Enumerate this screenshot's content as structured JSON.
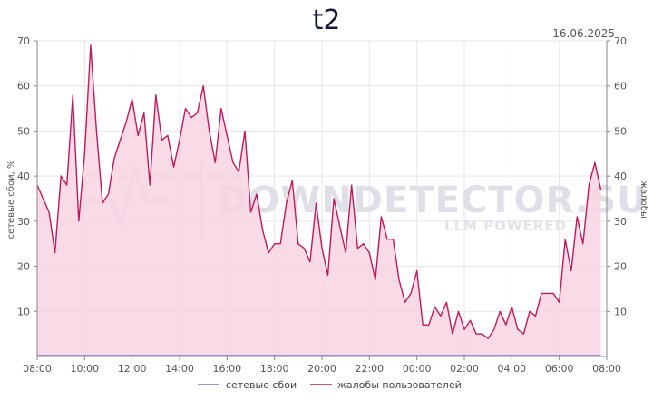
{
  "watermark": {
    "brand": "DOWNDETECTOR.SU",
    "tagline": "LLM POWERED"
  },
  "colors": {
    "complaints_line": "#c2185b",
    "complaints_fill": "#f8d3e3",
    "network_line": "#7b6fd0",
    "grid": "#e6e6e6",
    "axis": "#888888"
  },
  "chart_data": {
    "type": "area",
    "title": "t2",
    "date": "16.06.2025",
    "ylabel_left": "сетевые сбои, %",
    "ylabel_right": "жалобы",
    "ylim": [
      0,
      70
    ],
    "yticks": [
      10,
      20,
      30,
      40,
      50,
      60,
      70
    ],
    "xlim": [
      8,
      32
    ],
    "xticks": [
      {
        "x": 8,
        "label": "08:00"
      },
      {
        "x": 10,
        "label": "10:00"
      },
      {
        "x": 12,
        "label": "12:00"
      },
      {
        "x": 14,
        "label": "14:00"
      },
      {
        "x": 16,
        "label": "16:00"
      },
      {
        "x": 18,
        "label": "18:00"
      },
      {
        "x": 20,
        "label": "20:00"
      },
      {
        "x": 22,
        "label": "22:00"
      },
      {
        "x": 24,
        "label": "00:00"
      },
      {
        "x": 26,
        "label": "02:00"
      },
      {
        "x": 28,
        "label": "04:00"
      },
      {
        "x": 30,
        "label": "06:00"
      },
      {
        "x": 32,
        "label": "08:00"
      }
    ],
    "grid": true,
    "legend_position": "bottom-center",
    "series": [
      {
        "name": "сетевые сбои",
        "type": "line",
        "x": [
          8,
          31.75
        ],
        "values": [
          0,
          0
        ]
      },
      {
        "name": "жалобы пользователей",
        "type": "area",
        "x": [
          8.0,
          8.5,
          8.75,
          9.0,
          9.25,
          9.5,
          9.75,
          10.0,
          10.25,
          10.5,
          10.75,
          11.0,
          11.25,
          11.5,
          11.75,
          12.0,
          12.25,
          12.5,
          12.75,
          13.0,
          13.25,
          13.5,
          13.75,
          14.0,
          14.25,
          14.5,
          14.75,
          15.0,
          15.25,
          15.5,
          15.75,
          16.0,
          16.25,
          16.5,
          16.75,
          17.0,
          17.25,
          17.5,
          17.75,
          18.0,
          18.25,
          18.5,
          18.75,
          19.0,
          19.25,
          19.5,
          19.75,
          20.0,
          20.25,
          20.5,
          20.75,
          21.0,
          21.25,
          21.5,
          21.75,
          22.0,
          22.25,
          22.5,
          22.75,
          23.0,
          23.25,
          23.5,
          23.75,
          24.0,
          24.25,
          24.5,
          24.75,
          25.0,
          25.25,
          25.5,
          25.75,
          26.0,
          26.25,
          26.5,
          26.75,
          27.0,
          27.25,
          27.5,
          27.75,
          28.0,
          28.25,
          28.5,
          28.75,
          29.0,
          29.25,
          29.5,
          29.75,
          30.0,
          30.25,
          30.5,
          30.75,
          31.0,
          31.25,
          31.5,
          31.75
        ],
        "values": [
          38,
          32,
          23,
          40,
          38,
          58,
          30,
          45,
          69,
          50,
          34,
          36,
          44,
          48,
          52,
          57,
          49,
          54,
          38,
          58,
          48,
          49,
          42,
          48,
          55,
          53,
          54,
          60,
          50,
          43,
          55,
          49,
          43,
          41,
          50,
          32,
          36,
          28,
          23,
          25,
          25,
          34,
          39,
          25,
          24,
          21,
          34,
          24,
          18,
          35,
          29,
          23,
          38,
          24,
          25,
          23,
          17,
          31,
          26,
          26,
          17,
          12,
          14,
          19,
          7,
          7,
          11,
          9,
          12,
          5,
          10,
          6,
          8,
          5,
          5,
          4,
          6,
          10,
          7,
          11,
          6,
          5,
          10,
          9,
          14,
          14,
          14,
          12,
          26,
          19,
          31,
          25,
          38,
          43,
          37
        ]
      }
    ]
  }
}
